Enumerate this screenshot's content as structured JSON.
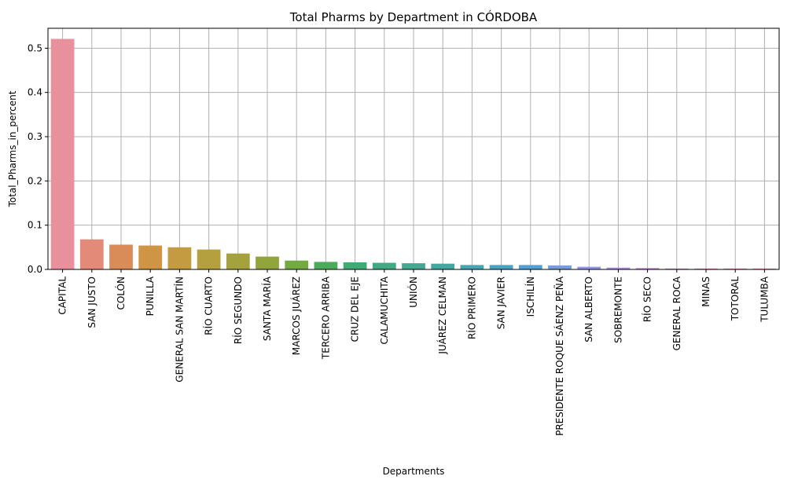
{
  "chart_data": {
    "type": "bar",
    "title": "Total Pharms by Department in CÓRDOBA",
    "xlabel": "Departments",
    "ylabel": "Total_Pharms_in_percent",
    "ylim": [
      0,
      0.545
    ],
    "yticks": [
      0.0,
      0.1,
      0.2,
      0.3,
      0.4,
      0.5
    ],
    "ytick_labels": [
      "0.0",
      "0.1",
      "0.2",
      "0.3",
      "0.4",
      "0.5"
    ],
    "grid": true,
    "categories": [
      "CAPITAL",
      "SAN JUSTO",
      "COLÓN",
      "PUNILLA",
      "GENERAL SAN MARTÍN",
      "RÍO CUARTO",
      "RÍO SEGUNDO",
      "SANTA MARÍA",
      "MARCOS JUÁREZ",
      "TERCERO ARRIBA",
      "CRUZ DEL EJE",
      "CALAMUCHITA",
      "UNIÓN",
      "JUÁREZ CELMAN",
      "RÍO PRIMERO",
      "SAN JAVIER",
      "ISCHILÍN",
      "PRESIDENTE ROQUE SÁENZ PEÑA",
      "SAN ALBERTO",
      "SOBREMONTE",
      "RÍO SECO",
      "GENERAL ROCA",
      "MINAS",
      "TOTORAL",
      "TULUMBA"
    ],
    "values": [
      0.521,
      0.068,
      0.056,
      0.054,
      0.05,
      0.045,
      0.036,
      0.029,
      0.02,
      0.017,
      0.016,
      0.015,
      0.014,
      0.013,
      0.01,
      0.01,
      0.01,
      0.009,
      0.006,
      0.004,
      0.003,
      0.002,
      0.002,
      0.002,
      0.002
    ],
    "colors": [
      "#e8919d",
      "#e48a78",
      "#da8c58",
      "#cf9444",
      "#c49b40",
      "#b5a040",
      "#a4a23d",
      "#91a53c",
      "#73aa42",
      "#4cab58",
      "#42ab74",
      "#42a985",
      "#44a893",
      "#45a6a2",
      "#47a4b1",
      "#49a2c1",
      "#53a0d2",
      "#779ce0",
      "#9395e6",
      "#ae8ce6",
      "#c285e3",
      "#d57fd9",
      "#e281c5",
      "#e887b3",
      "#ec8ba5"
    ]
  }
}
